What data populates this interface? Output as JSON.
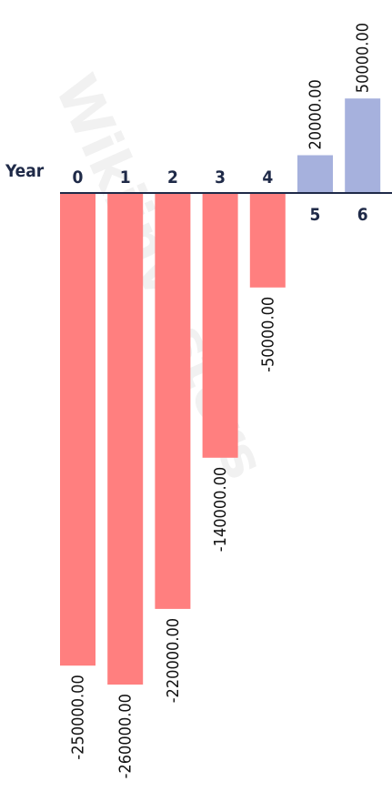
{
  "chart_data": {
    "type": "bar",
    "xlabel": "Year",
    "categories": [
      "0",
      "1",
      "2",
      "3",
      "4",
      "5",
      "6"
    ],
    "values": [
      -250000,
      -260000,
      -220000,
      -140000,
      -50000,
      20000,
      50000
    ],
    "value_labels": [
      "-250000.00",
      "-260000.00",
      "-220000.00",
      "-140000.00",
      "-50000.00",
      "20000.00",
      "50000.00"
    ],
    "negative_color": "#ff7f7f",
    "positive_color": "#a6b1dd",
    "grid": false
  },
  "watermark": "Wikiinvestors"
}
